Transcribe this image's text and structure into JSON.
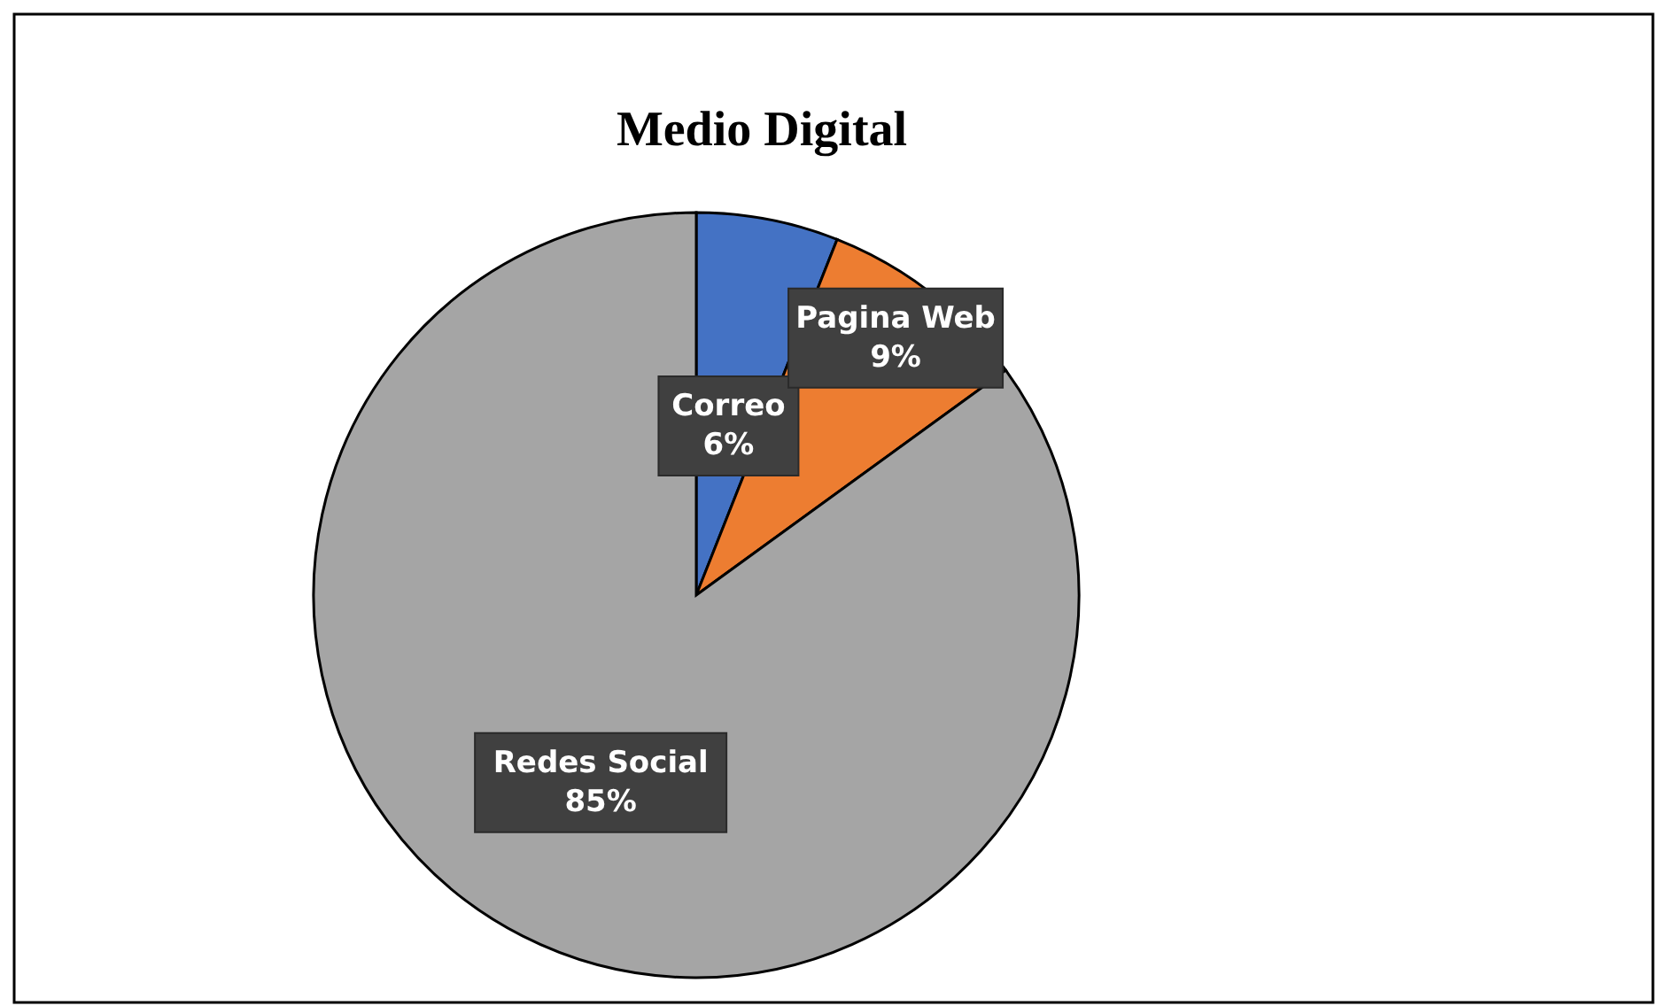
{
  "chart_data": {
    "type": "pie",
    "title": "Medio Digital",
    "categories": [
      "Correo",
      "Pagina Web",
      "Redes Social"
    ],
    "values": [
      6,
      9,
      85
    ],
    "colors": [
      "#4472c4",
      "#ed7d31",
      "#a5a5a5"
    ],
    "value_labels": [
      "6%",
      "9%",
      "85%"
    ]
  }
}
